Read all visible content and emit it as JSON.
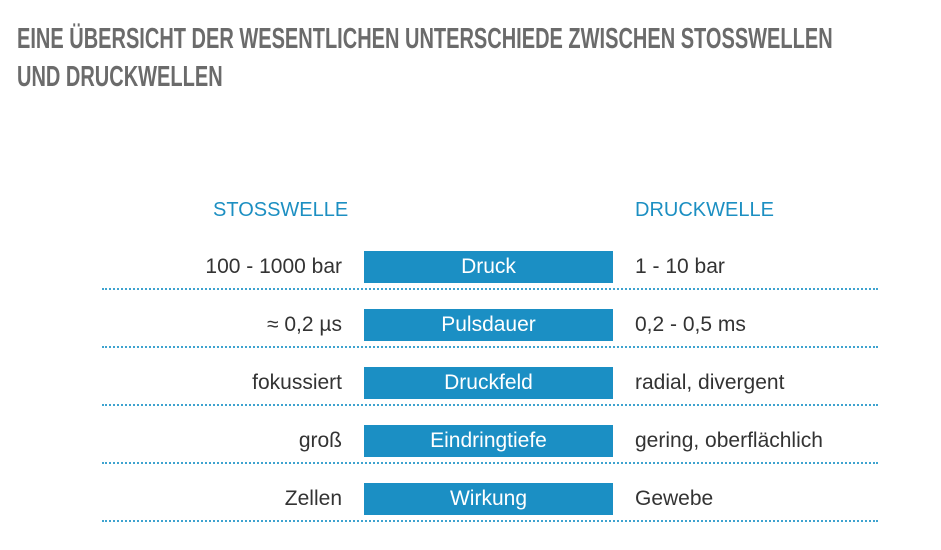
{
  "title_lines": [
    "EINE ÜBERSICHT DER WESENTLICHEN UNTERSCHIEDE ZWISCHEN STOSSWELLEN",
    "UND DRUCKWELLEN"
  ],
  "table": {
    "headers": [
      "STOSSWELLE",
      "DRUCKWELLE"
    ],
    "rows": [
      [
        "100 - 1000 bar",
        "Druck",
        "1 - 10 bar"
      ],
      [
        "≈ 0,2 µs",
        "Pulsdauer",
        "0,2 - 0,5 ms"
      ],
      [
        "fokussiert",
        "Druckfeld",
        "radial, divergent"
      ],
      [
        "groß",
        "Eindringtiefe",
        "gering, oberflächlich"
      ],
      [
        "Zellen",
        "Wirkung",
        "Gewebe"
      ]
    ]
  }
}
